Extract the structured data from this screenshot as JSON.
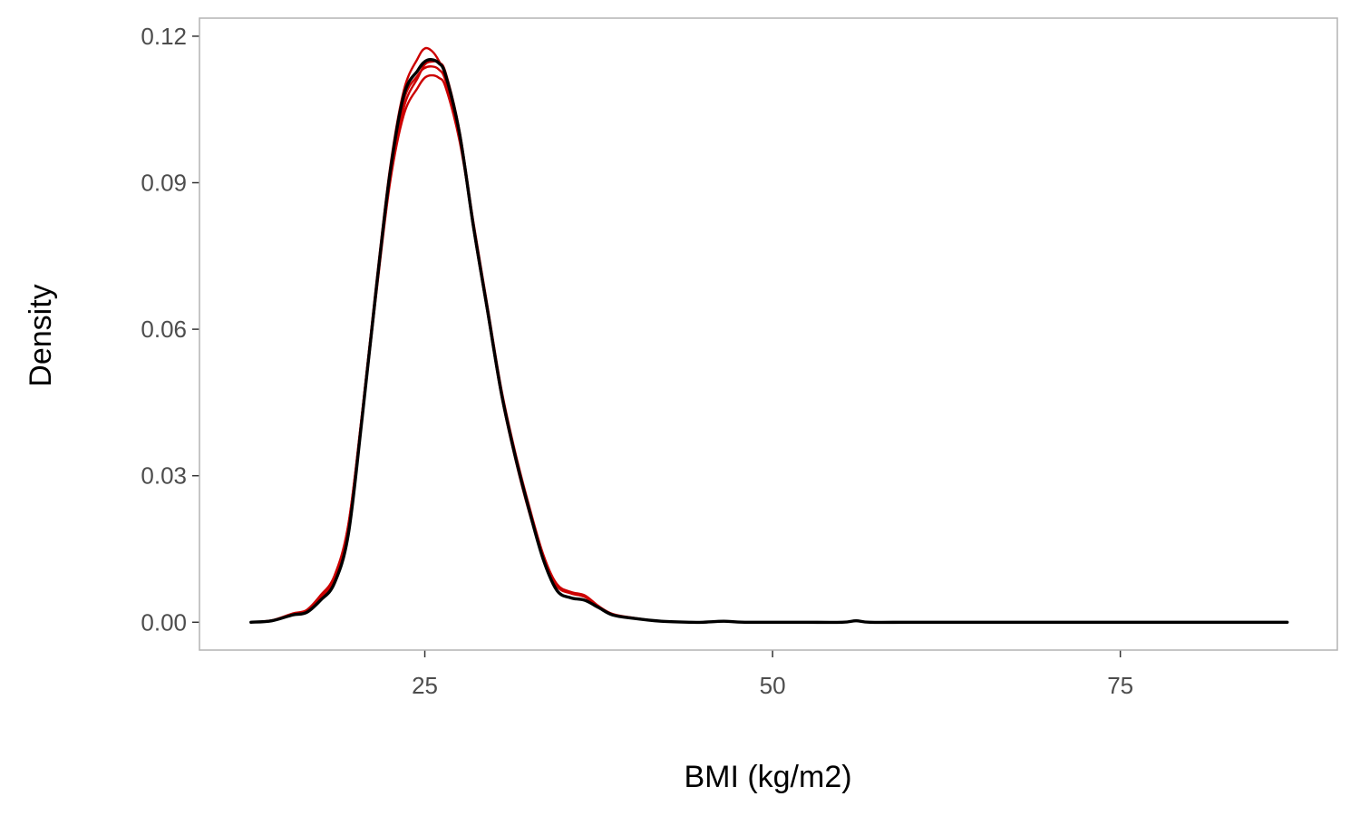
{
  "chart_data": {
    "type": "line",
    "title": "",
    "xlabel": "BMI (kg/m2)",
    "ylabel": "Density",
    "xlim": [
      8.8,
      90.6
    ],
    "ylim": [
      -0.0057,
      0.1237
    ],
    "x_ticks": [
      25,
      50,
      75
    ],
    "x_tick_labels": [
      "25",
      "50",
      "75"
    ],
    "y_ticks": [
      0.0,
      0.03,
      0.06,
      0.09,
      0.12
    ],
    "y_tick_labels": [
      "0.00",
      "0.03",
      "0.06",
      "0.09",
      "0.12"
    ],
    "grid": false,
    "legend": "none",
    "colors": {
      "imputed": "#cc0000",
      "observed": "#000000",
      "frame": "#b3b3b3"
    },
    "series": [
      {
        "role": "observed",
        "color": "#000000",
        "x": [
          12.5,
          14.0,
          15.5,
          16.5,
          17.5,
          18.5,
          19.5,
          20.5,
          21.5,
          22.5,
          23.5,
          24.5,
          25.0,
          25.5,
          26.0,
          26.5,
          27.5,
          28.5,
          29.5,
          30.5,
          31.5,
          32.5,
          33.5,
          34.5,
          35.5,
          36.5,
          37.5,
          38.5,
          40.0,
          42.0,
          44.0,
          45.0,
          46.5,
          48.0,
          52.0,
          55.0,
          56.0,
          57.0,
          60.0,
          65.0,
          70.0,
          75.0,
          80.0,
          87.0
        ],
        "y": [
          0.0,
          0.0003,
          0.0015,
          0.002,
          0.0045,
          0.008,
          0.018,
          0.042,
          0.068,
          0.092,
          0.108,
          0.113,
          0.1148,
          0.1152,
          0.1145,
          0.112,
          0.1,
          0.081,
          0.064,
          0.047,
          0.034,
          0.023,
          0.013,
          0.0065,
          0.005,
          0.0045,
          0.003,
          0.0015,
          0.0008,
          0.0002,
          0.0,
          0.0,
          0.0002,
          0.0,
          0.0,
          0.0,
          0.0003,
          0.0,
          0.0,
          0.0,
          0.0,
          0.0,
          0.0,
          0.0
        ]
      },
      {
        "role": "imputed",
        "color": "#cc0000",
        "x": [
          12.5,
          14.0,
          15.5,
          16.5,
          17.5,
          18.5,
          19.5,
          20.5,
          21.5,
          22.5,
          23.5,
          24.5,
          25.0,
          25.5,
          26.0,
          26.5,
          27.5,
          28.5,
          29.5,
          30.5,
          31.5,
          32.5,
          33.5,
          34.5,
          35.5,
          36.5,
          37.5,
          38.5,
          40.0,
          42.0,
          44.0,
          45.0,
          46.5,
          48.0,
          52.0,
          55.0,
          56.0,
          57.0,
          60.0,
          65.0,
          70.0,
          75.0,
          80.0,
          87.0
        ],
        "y": [
          0.0,
          0.0004,
          0.0018,
          0.0025,
          0.0055,
          0.0095,
          0.02,
          0.043,
          0.069,
          0.093,
          0.109,
          0.1155,
          0.1175,
          0.117,
          0.115,
          0.1115,
          0.0995,
          0.0805,
          0.0635,
          0.0465,
          0.0335,
          0.0225,
          0.0135,
          0.0075,
          0.006,
          0.0052,
          0.0032,
          0.0016,
          0.0008,
          0.0002,
          0.0,
          0.0,
          0.0002,
          0.0,
          0.0,
          0.0,
          0.0003,
          0.0,
          0.0,
          0.0,
          0.0,
          0.0,
          0.0,
          0.0
        ]
      },
      {
        "role": "imputed",
        "color": "#cc0000",
        "x": [
          12.5,
          14.0,
          15.5,
          16.5,
          17.5,
          18.5,
          19.5,
          20.5,
          21.5,
          22.5,
          23.5,
          24.5,
          25.0,
          25.5,
          26.0,
          26.5,
          27.5,
          28.5,
          29.5,
          30.5,
          31.5,
          32.5,
          33.5,
          34.5,
          35.5,
          36.5,
          37.5,
          38.5,
          40.0,
          42.0,
          44.0,
          45.0,
          46.5,
          48.0,
          52.0,
          55.0,
          56.0,
          57.0,
          60.0,
          65.0,
          70.0,
          75.0,
          80.0,
          87.0
        ],
        "y": [
          0.0,
          0.0003,
          0.0016,
          0.0022,
          0.005,
          0.009,
          0.019,
          0.042,
          0.067,
          0.09,
          0.104,
          0.1095,
          0.1115,
          0.112,
          0.1115,
          0.1095,
          0.0985,
          0.0815,
          0.0645,
          0.0475,
          0.0345,
          0.0235,
          0.0138,
          0.0078,
          0.0062,
          0.0055,
          0.0033,
          0.0017,
          0.0009,
          0.0002,
          0.0,
          0.0,
          0.0002,
          0.0,
          0.0,
          0.0,
          0.0003,
          0.0,
          0.0,
          0.0,
          0.0,
          0.0,
          0.0,
          0.0
        ]
      },
      {
        "role": "imputed",
        "color": "#cc0000",
        "x": [
          12.5,
          14.0,
          15.5,
          16.5,
          17.5,
          18.5,
          19.5,
          20.5,
          21.5,
          22.5,
          23.5,
          24.5,
          25.0,
          25.5,
          26.0,
          26.5,
          27.5,
          28.5,
          29.5,
          30.5,
          31.5,
          32.5,
          33.5,
          34.5,
          35.5,
          36.5,
          37.5,
          38.5,
          40.0,
          42.0,
          44.0,
          45.0,
          46.5,
          48.0,
          52.0,
          55.0,
          56.0,
          57.0,
          60.0,
          65.0,
          70.0,
          75.0,
          80.0,
          87.0
        ],
        "y": [
          0.0,
          0.0003,
          0.0016,
          0.0023,
          0.0052,
          0.0088,
          0.0195,
          0.043,
          0.0685,
          0.0915,
          0.107,
          0.112,
          0.1135,
          0.1138,
          0.1132,
          0.1108,
          0.0998,
          0.0812,
          0.0642,
          0.0472,
          0.0342,
          0.0232,
          0.0136,
          0.0074,
          0.0059,
          0.0052,
          0.0032,
          0.0016,
          0.0008,
          0.0002,
          0.0,
          0.0,
          0.0002,
          0.0,
          0.0,
          0.0,
          0.0003,
          0.0,
          0.0,
          0.0,
          0.0,
          0.0,
          0.0,
          0.0
        ]
      },
      {
        "role": "imputed",
        "color": "#cc0000",
        "x": [
          12.5,
          14.0,
          15.5,
          16.5,
          17.5,
          18.5,
          19.5,
          20.5,
          21.5,
          22.5,
          23.5,
          24.5,
          25.0,
          25.5,
          26.0,
          26.5,
          27.5,
          28.5,
          29.5,
          30.5,
          31.5,
          32.5,
          33.5,
          34.5,
          35.5,
          36.5,
          37.5,
          38.5,
          40.0,
          42.0,
          44.0,
          45.0,
          46.5,
          48.0,
          52.0,
          55.0,
          56.0,
          57.0,
          60.0,
          65.0,
          70.0,
          75.0,
          80.0,
          87.0
        ],
        "y": [
          0.0,
          0.0003,
          0.0017,
          0.0024,
          0.0053,
          0.0092,
          0.0198,
          0.0425,
          0.0675,
          0.0905,
          0.1055,
          0.1115,
          0.1142,
          0.1148,
          0.1146,
          0.1125,
          0.1005,
          0.0818,
          0.0648,
          0.0478,
          0.0348,
          0.0238,
          0.014,
          0.0076,
          0.006,
          0.0053,
          0.0032,
          0.0016,
          0.0008,
          0.0002,
          0.0,
          0.0,
          0.0002,
          0.0,
          0.0,
          0.0,
          0.0003,
          0.0,
          0.0,
          0.0,
          0.0,
          0.0,
          0.0,
          0.0
        ]
      }
    ]
  }
}
